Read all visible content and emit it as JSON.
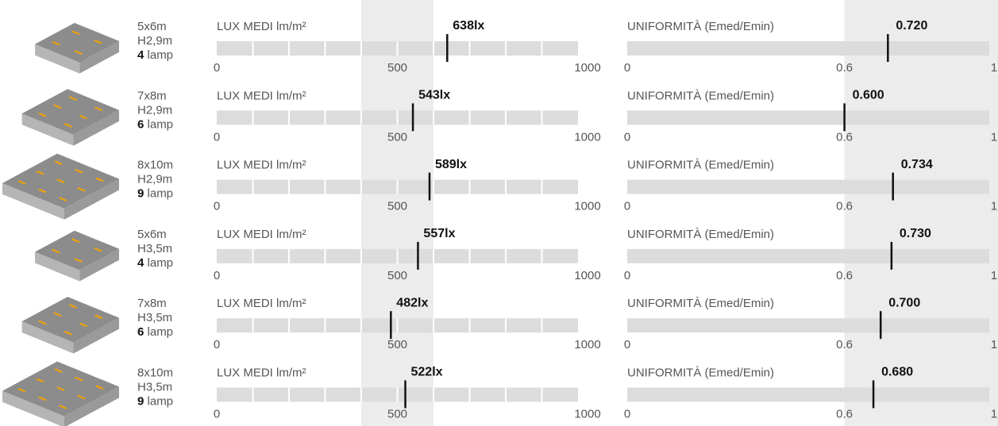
{
  "lux_label": "LUX MEDI lm/m²",
  "uniformity_label": "UNIFORMITÀ (Emed/Emin)",
  "lamp_unit": "lamp",
  "lux_axis": {
    "lim": [
      0,
      1000
    ],
    "ticks": [
      0,
      500,
      1000
    ],
    "minor_ticks": [
      100,
      200,
      300,
      400,
      500,
      600,
      700,
      800,
      900
    ],
    "band": [
      400,
      600
    ]
  },
  "uniformity_axis": {
    "lim": [
      0,
      1
    ],
    "ticks": [
      0,
      0.6,
      1
    ],
    "band": [
      0.6,
      1
    ]
  },
  "rows": [
    {
      "size": "5x6m",
      "height": "H2,9m",
      "lamps": 4,
      "lux": 638,
      "lux_label": "638lx",
      "uniformity": 0.72,
      "uniformity_label": "0.720"
    },
    {
      "size": "7x8m",
      "height": "H2,9m",
      "lamps": 6,
      "lux": 543,
      "lux_label": "543lx",
      "uniformity": 0.6,
      "uniformity_label": "0.600"
    },
    {
      "size": "8x10m",
      "height": "H2,9m",
      "lamps": 9,
      "lux": 589,
      "lux_label": "589lx",
      "uniformity": 0.734,
      "uniformity_label": "0.734"
    },
    {
      "size": "5x6m",
      "height": "H3,5m",
      "lamps": 4,
      "lux": 557,
      "lux_label": "557lx",
      "uniformity": 0.73,
      "uniformity_label": "0.730"
    },
    {
      "size": "7x8m",
      "height": "H3,5m",
      "lamps": 6,
      "lux": 482,
      "lux_label": "482lx",
      "uniformity": 0.7,
      "uniformity_label": "0.700"
    },
    {
      "size": "8x10m",
      "height": "H3,5m",
      "lamps": 9,
      "lux": 522,
      "lux_label": "522lx",
      "uniformity": 0.68,
      "uniformity_label": "0.680"
    }
  ]
}
